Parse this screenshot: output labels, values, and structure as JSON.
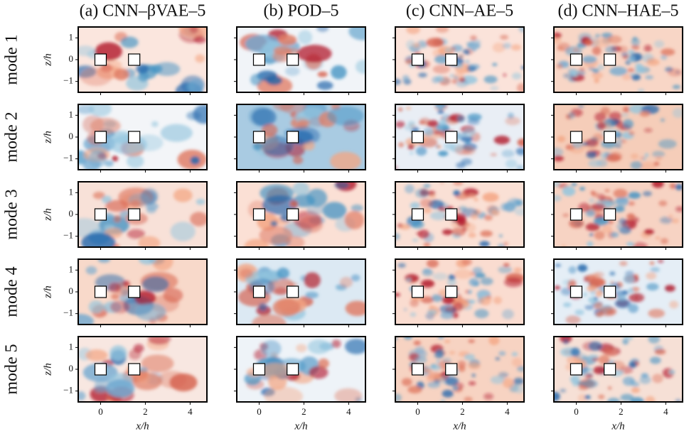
{
  "columns": [
    {
      "title": "(a) CNN–βVAE–5"
    },
    {
      "title": "(b) POD–5"
    },
    {
      "title": "(c) CNN–AE–5"
    },
    {
      "title": "(d) CNN–HAE–5"
    }
  ],
  "rows": [
    {
      "label": "mode 1"
    },
    {
      "label": "mode 2"
    },
    {
      "label": "mode 3"
    },
    {
      "label": "mode 4"
    },
    {
      "label": "mode 5"
    }
  ],
  "axes": {
    "x_label": "x/h",
    "y_label": "z/h",
    "xlim": [
      -1,
      4.75
    ],
    "ylim": [
      -1.5,
      1.5
    ],
    "xticks": [
      0,
      2,
      4
    ],
    "yticks": [
      {
        "value": -1,
        "label": "−1"
      },
      0,
      1
    ]
  }
}
